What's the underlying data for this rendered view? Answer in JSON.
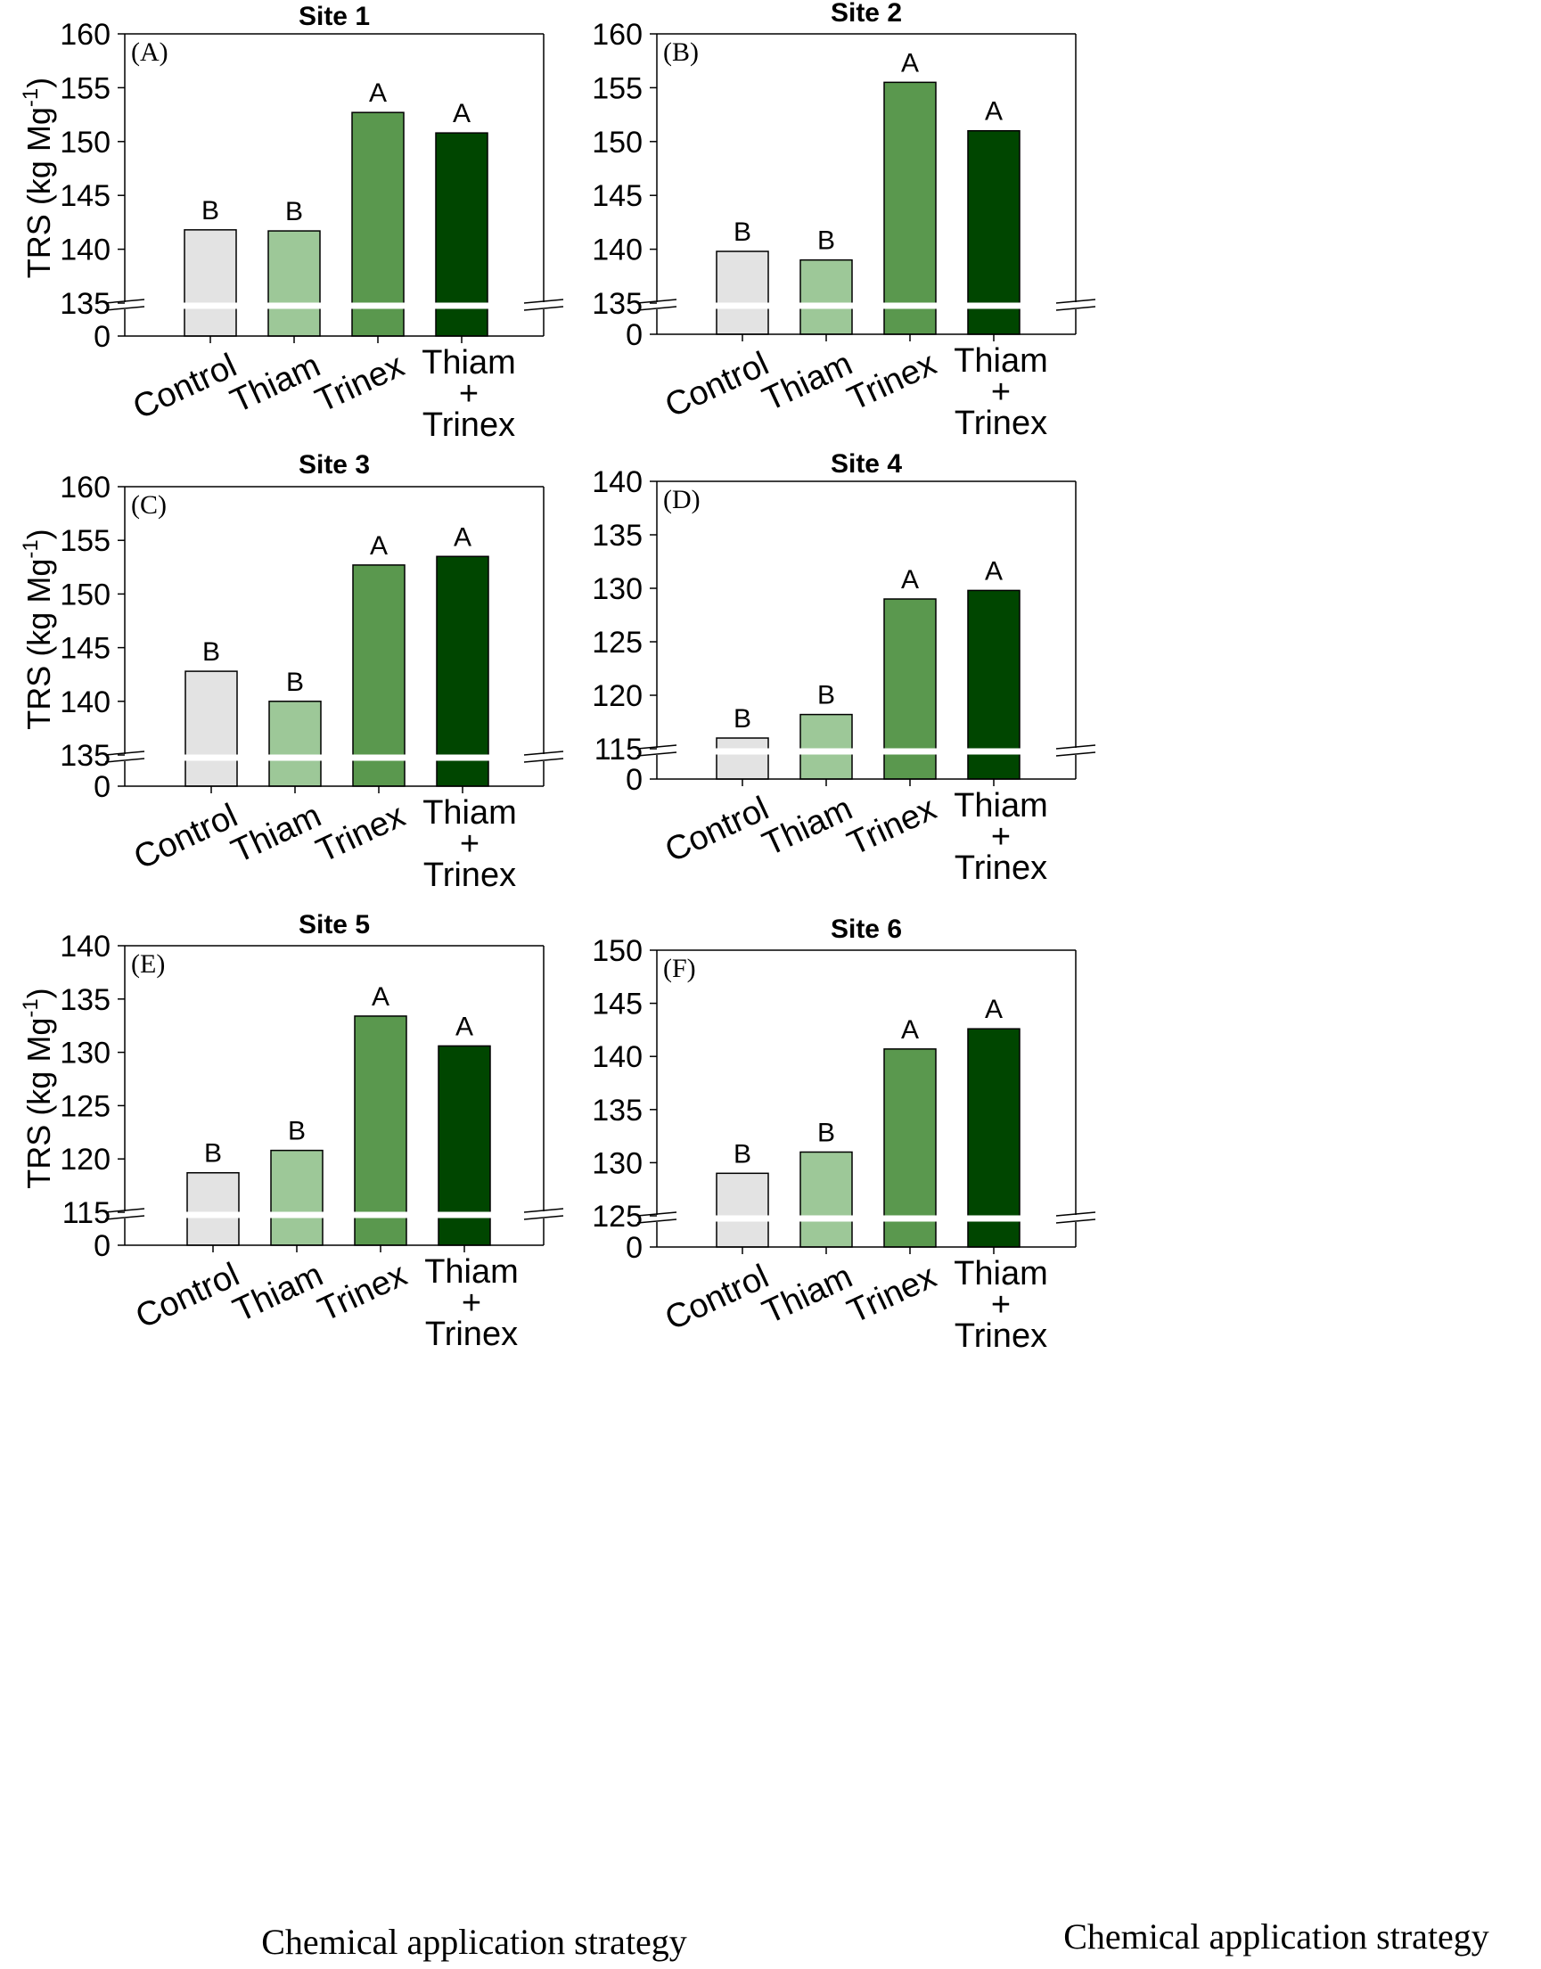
{
  "colors": [
    "#e3e3e3",
    "#9dc898",
    "#5a984e",
    "#004600"
  ],
  "ylabel": "TRS (kg Mg",
  "ylabel_sup": "-1",
  "ylabel_close": ")",
  "xlabel_left": "Chemical application strategy",
  "xlabel_right": "Chemical application strategy",
  "categories": [
    "Control",
    "Thiam",
    "Trinex",
    "Thiam + Trinex"
  ],
  "category_lines": {
    "control": "Control",
    "thiam": "Thiam",
    "trinex": "Trinex",
    "combo_line1": "Thiam",
    "combo_line2": "+",
    "combo_line3": "Trinex"
  },
  "chart_data": [
    {
      "type": "bar",
      "title": "Site 1",
      "panel": "(A)",
      "categories": [
        "Control",
        "Thiam",
        "Trinex",
        "Thiam + Trinex"
      ],
      "values": [
        141.8,
        141.7,
        152.7,
        150.8
      ],
      "letters": [
        "B",
        "B",
        "A",
        "A"
      ],
      "ylim": [
        135,
        160
      ],
      "yticks": [
        160,
        155,
        150,
        145,
        140,
        135,
        0
      ],
      "axis_break": true,
      "ylabel": "TRS (kg Mg-1)",
      "xlabel": ""
    },
    {
      "type": "bar",
      "title": "Site 2",
      "panel": "(B)",
      "categories": [
        "Control",
        "Thiam",
        "Trinex",
        "Thiam + Trinex"
      ],
      "values": [
        139.8,
        139.0,
        155.5,
        151.0
      ],
      "letters": [
        "B",
        "B",
        "A",
        "A"
      ],
      "ylim": [
        135,
        160
      ],
      "yticks": [
        160,
        155,
        150,
        145,
        140,
        135,
        0
      ],
      "axis_break": true,
      "ylabel": "",
      "xlabel": ""
    },
    {
      "type": "bar",
      "title": "Site 3",
      "panel": "(C)",
      "categories": [
        "Control",
        "Thiam",
        "Trinex",
        "Thiam + Trinex"
      ],
      "values": [
        142.8,
        140.0,
        152.7,
        153.5
      ],
      "letters": [
        "B",
        "B",
        "A",
        "A"
      ],
      "ylim": [
        135,
        160
      ],
      "yticks": [
        160,
        155,
        150,
        145,
        140,
        135,
        0
      ],
      "axis_break": true,
      "ylabel": "TRS (kg Mg-1)",
      "xlabel": ""
    },
    {
      "type": "bar",
      "title": "Site 4",
      "panel": "(D)",
      "categories": [
        "Control",
        "Thiam",
        "Trinex",
        "Thiam + Trinex"
      ],
      "values": [
        116.0,
        118.2,
        129.0,
        129.8
      ],
      "letters": [
        "B",
        "B",
        "A",
        "A"
      ],
      "ylim": [
        115,
        140
      ],
      "yticks": [
        140,
        135,
        130,
        125,
        120,
        115,
        0
      ],
      "axis_break": true,
      "ylabel": "",
      "xlabel": ""
    },
    {
      "type": "bar",
      "title": "Site 5",
      "panel": "(E)",
      "categories": [
        "Control",
        "Thiam",
        "Trinex",
        "Thiam + Trinex"
      ],
      "values": [
        118.7,
        120.8,
        133.4,
        130.6
      ],
      "letters": [
        "B",
        "B",
        "A",
        "A"
      ],
      "ylim": [
        115,
        140
      ],
      "yticks": [
        140,
        135,
        130,
        125,
        120,
        115,
        0
      ],
      "axis_break": true,
      "ylabel": "TRS (kg Mg-1)",
      "xlabel": "Chemical application strategy"
    },
    {
      "type": "bar",
      "title": "Site 6",
      "panel": "(F)",
      "categories": [
        "Control",
        "Thiam",
        "Trinex",
        "Thiam + Trinex"
      ],
      "values": [
        129.0,
        131.0,
        140.7,
        142.6
      ],
      "letters": [
        "B",
        "B",
        "A",
        "A"
      ],
      "ylim": [
        125,
        150
      ],
      "yticks": [
        150,
        145,
        140,
        135,
        130,
        125,
        0
      ],
      "axis_break": true,
      "ylabel": "",
      "xlabel": "Chemical application strategy"
    }
  ]
}
